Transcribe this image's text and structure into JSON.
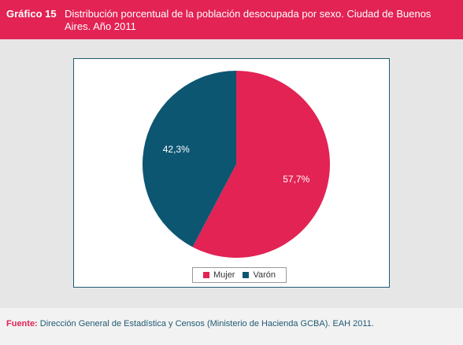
{
  "header": {
    "label": "Gráfico 15",
    "title": "Distribución porcentual de la población desocupada por sexo. Ciudad de Buenos Aires. Año 2011"
  },
  "chart_data": {
    "type": "pie",
    "categories": [
      "Mujer",
      "Varón"
    ],
    "values": [
      57.7,
      42.3
    ],
    "labels": [
      "57,7%",
      "42,3%"
    ],
    "colors": [
      "#e22354",
      "#0d5672"
    ],
    "legend": "bottom"
  },
  "source": {
    "prefix": "Fuente:",
    "text": "Dirección General de Estadística y Censos (Ministerio de Hacienda GCBA). EAH 2011."
  }
}
